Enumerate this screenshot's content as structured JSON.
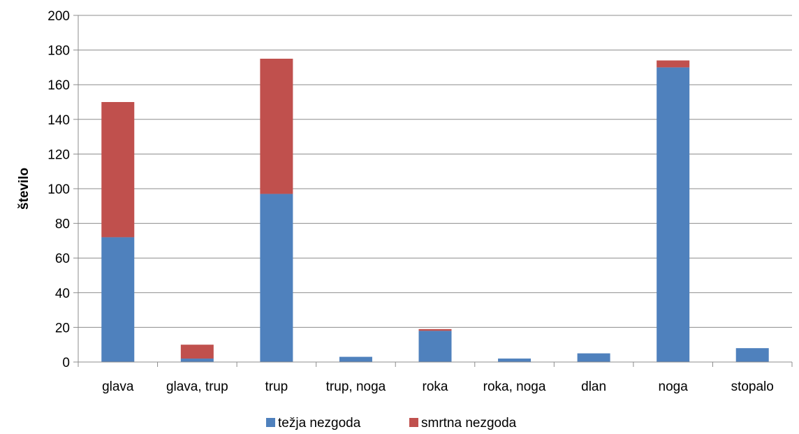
{
  "chart_data": {
    "type": "bar",
    "stacked": true,
    "categories": [
      "glava",
      "glava, trup",
      "trup",
      "trup, noga",
      "roka",
      "roka, noga",
      "dlan",
      "noga",
      "stopalo"
    ],
    "series": [
      {
        "name": "težja nezgoda",
        "color": "#4F81BD",
        "values": [
          72,
          2,
          97,
          3,
          18,
          2,
          5,
          170,
          8
        ]
      },
      {
        "name": "smrtna nezgoda",
        "color": "#C0504D",
        "values": [
          78,
          8,
          78,
          0,
          1,
          0,
          0,
          4,
          0
        ]
      }
    ],
    "ylabel": "število",
    "xlabel": "",
    "ylim": [
      0,
      200
    ],
    "yticks": [
      "0",
      "20",
      "40",
      "60",
      "80",
      "100",
      "120",
      "140",
      "160",
      "180",
      "200"
    ],
    "grid": true,
    "legend": "bottom"
  }
}
